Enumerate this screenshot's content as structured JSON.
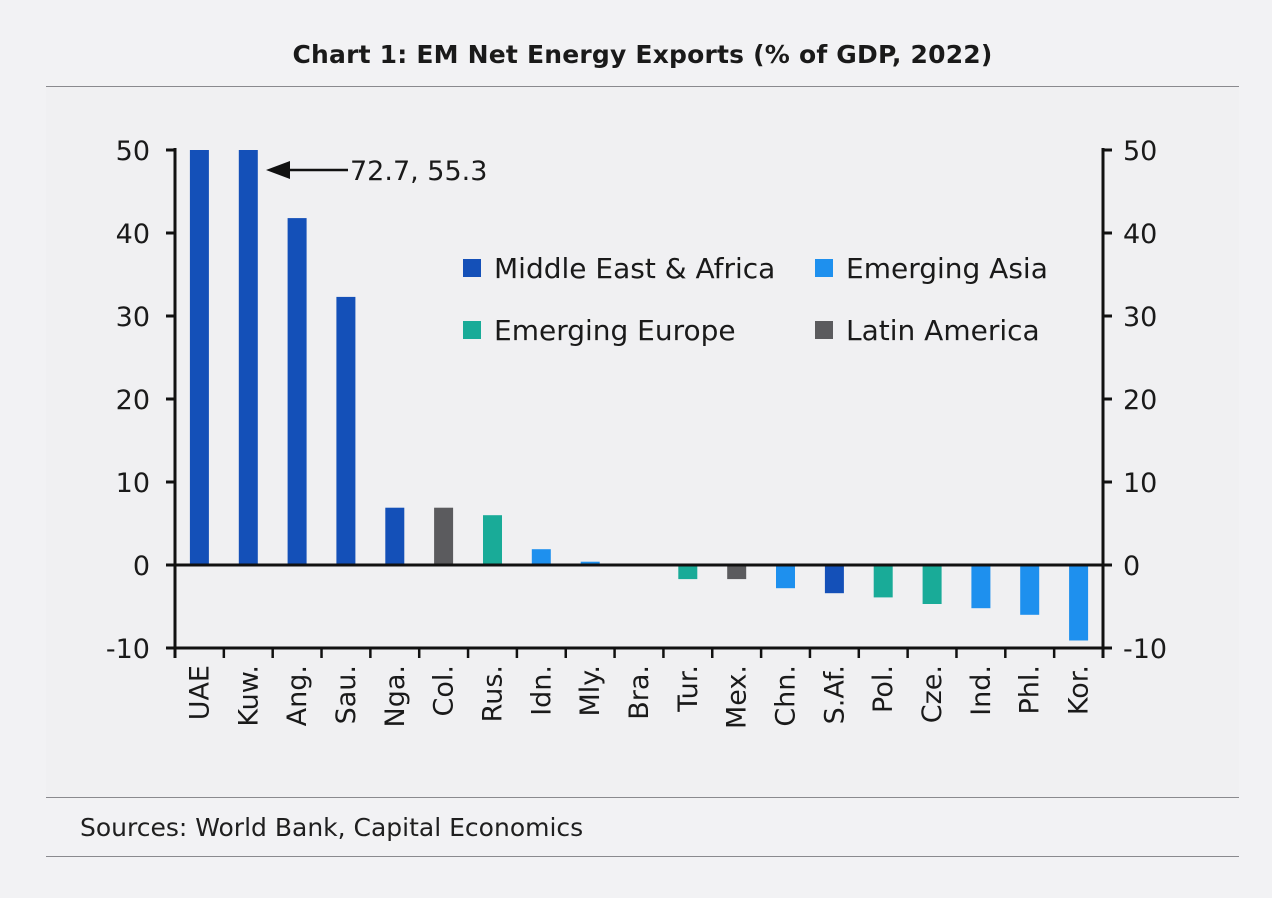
{
  "title": "Chart 1: EM Net Energy Exports (% of GDP, 2022)",
  "sources": "Sources: World Bank, Capital Economics",
  "chart_data": {
    "type": "bar",
    "title": "Chart 1: EM Net Energy Exports (% of GDP, 2022)",
    "xlabel": "",
    "ylabel": "",
    "ylim": [
      -10,
      50
    ],
    "yticks": [
      50,
      40,
      30,
      20,
      10,
      0,
      -10
    ],
    "secondary_y_axis": true,
    "grid": false,
    "legend_position": "top-right",
    "categories": [
      "UAE",
      "Kuw.",
      "Ang.",
      "Sau.",
      "Nga.",
      "Col.",
      "Rus.",
      "Idn.",
      "Mly.",
      "Bra.",
      "Tur.",
      "Mex.",
      "Chn.",
      "S.Af.",
      "Pol.",
      "Cze.",
      "Ind.",
      "Phl.",
      "Kor."
    ],
    "values": [
      50,
      50,
      41.8,
      32.3,
      6.9,
      6.9,
      6.0,
      1.9,
      0.4,
      0,
      -1.7,
      -1.7,
      -2.8,
      -3.4,
      -3.9,
      -4.7,
      -5.2,
      -6.0,
      -9.1
    ],
    "regions": [
      "mea",
      "mea",
      "mea",
      "mea",
      "mea",
      "latam",
      "europe",
      "asia",
      "asia",
      "latam",
      "europe",
      "latam",
      "asia",
      "mea",
      "europe",
      "europe",
      "asia",
      "asia",
      "asia"
    ],
    "legend": [
      {
        "key": "mea",
        "label": "Middle East & Africa",
        "color": "#1450b8"
      },
      {
        "key": "asia",
        "label": "Emerging Asia",
        "color": "#1e90ee"
      },
      {
        "key": "europe",
        "label": "Emerging Europe",
        "color": "#19ab98"
      },
      {
        "key": "latam",
        "label": "Latin America",
        "color": "#5b5b5e"
      }
    ],
    "annotation": {
      "text": "72.7, 55.3",
      "note_values": [
        72.7,
        55.3
      ]
    }
  }
}
